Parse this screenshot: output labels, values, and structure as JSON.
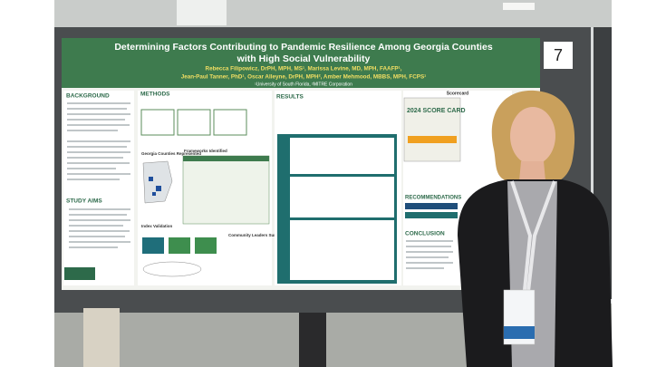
{
  "board_number": "7",
  "poster": {
    "title_lines": [
      "Determining Factors Contributing to Pandemic Resilience Among Georgia Counties",
      "with High Social Vulnerability"
    ],
    "author_lines": [
      "Rebecca Filipowicz, DrPH, MPH, MS¹, Marissa Levine, MD, MPH, FAAFP¹,",
      "Jean-Paul Tanner, PhD¹, Oscar Alleyne, DrPH, MPH², Amber Mehmood, MBBS, MPH, FCPS¹"
    ],
    "affiliations": "¹University of South Florida, ²MITRE Corporation",
    "sections": {
      "background": "BACKGROUND",
      "methods": "METHODS",
      "results": "RESULTS",
      "study_aims": "STUDY AIMS",
      "scorecard": "Scorecard",
      "score_card": "2024 SCORE CARD",
      "recommendations": "RECOMMENDATIONS",
      "conclusion": "CONCLUSION",
      "georgia_counties": "Georgia Counties Represented",
      "frameworks": "Frameworks Identified",
      "index_validation": "Index Validation",
      "community_leaders": "Community Leaders Surveyed"
    }
  }
}
